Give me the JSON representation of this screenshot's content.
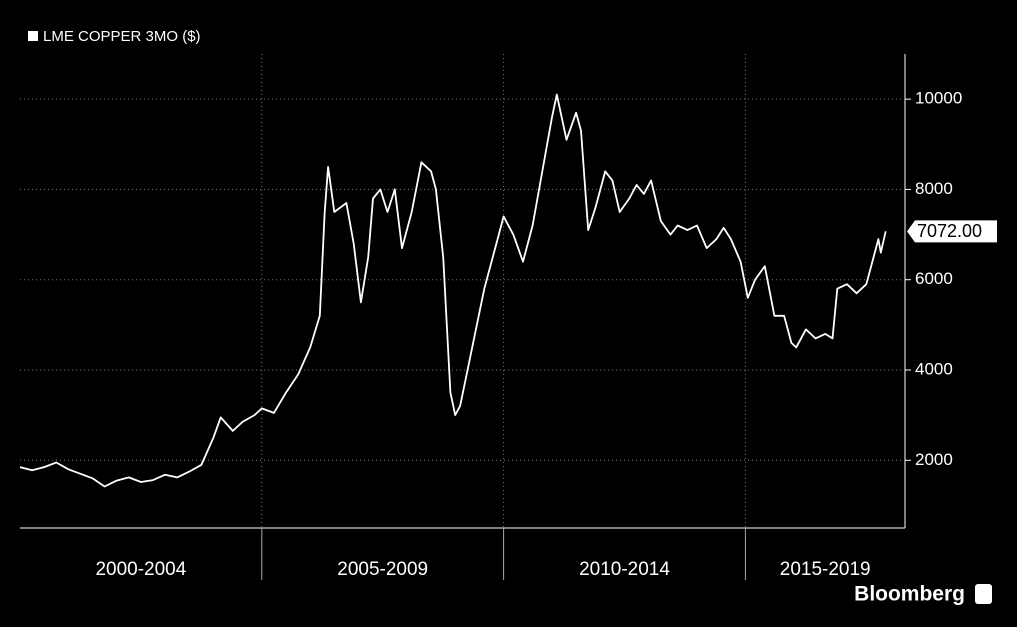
{
  "chart_data": {
    "type": "line",
    "series": [
      {
        "name": "LME COPPER 3MO ($)",
        "color": "#ffffff",
        "x": [
          2000.0,
          2000.25,
          2000.5,
          2000.75,
          2001.0,
          2001.25,
          2001.5,
          2001.75,
          2002.0,
          2002.25,
          2002.5,
          2002.75,
          2003.0,
          2003.25,
          2003.5,
          2003.75,
          2004.0,
          2004.15,
          2004.4,
          2004.6,
          2004.85,
          2005.0,
          2005.25,
          2005.5,
          2005.75,
          2006.0,
          2006.2,
          2006.3,
          2006.37,
          2006.5,
          2006.75,
          2006.9,
          2007.05,
          2007.2,
          2007.3,
          2007.45,
          2007.6,
          2007.75,
          2007.9,
          2008.1,
          2008.3,
          2008.5,
          2008.6,
          2008.75,
          2008.9,
          2009.0,
          2009.1,
          2009.35,
          2009.6,
          2009.85,
          2010.0,
          2010.2,
          2010.4,
          2010.6,
          2010.8,
          2011.0,
          2011.1,
          2011.3,
          2011.5,
          2011.6,
          2011.75,
          2011.9,
          2012.1,
          2012.25,
          2012.4,
          2012.6,
          2012.75,
          2012.9,
          2013.05,
          2013.25,
          2013.45,
          2013.6,
          2013.8,
          2014.0,
          2014.2,
          2014.4,
          2014.55,
          2014.7,
          2014.9,
          2015.05,
          2015.2,
          2015.4,
          2015.6,
          2015.8,
          2015.95,
          2016.05,
          2016.25,
          2016.45,
          2016.65,
          2016.8,
          2016.9,
          2017.1,
          2017.3,
          2017.5,
          2017.65,
          2017.75,
          2017.8,
          2017.9
        ],
        "values": [
          1850,
          1780,
          1850,
          1950,
          1800,
          1700,
          1600,
          1420,
          1550,
          1620,
          1520,
          1560,
          1680,
          1620,
          1750,
          1900,
          2500,
          2950,
          2650,
          2850,
          3000,
          3150,
          3050,
          3500,
          3900,
          4500,
          5200,
          7500,
          8500,
          7500,
          7700,
          6800,
          5500,
          6500,
          7800,
          8000,
          7500,
          8000,
          6700,
          7500,
          8600,
          8400,
          8000,
          6500,
          3500,
          3000,
          3200,
          4500,
          5800,
          6800,
          7400,
          7000,
          6400,
          7200,
          8400,
          9600,
          10100,
          9100,
          9700,
          9300,
          7100,
          7600,
          8400,
          8200,
          7500,
          7800,
          8100,
          7900,
          8200,
          7300,
          7000,
          7200,
          7100,
          7200,
          6700,
          6900,
          7150,
          6900,
          6400,
          5600,
          6000,
          6300,
          5200,
          5200,
          4600,
          4500,
          4900,
          4700,
          4800,
          4700,
          5800,
          5900,
          5700,
          5900,
          6500,
          6900,
          6600,
          7072
        ]
      }
    ],
    "last_value_label": {
      "value": 7072,
      "label": "7072.00"
    },
    "xlim": [
      2000,
      2018.3
    ],
    "xticks": [
      {
        "value": 2002.5,
        "label": "2000-2004"
      },
      {
        "value": 2007.5,
        "label": "2005-2009"
      },
      {
        "value": 2012.5,
        "label": "2010-2014"
      },
      {
        "value": 2016.65,
        "label": "2015-2019"
      }
    ],
    "xgrid": [
      2005,
      2010,
      2015
    ],
    "ylim": [
      500,
      11000
    ],
    "yticks": [
      2000,
      4000,
      6000,
      8000,
      10000
    ],
    "grid": true,
    "source": "Bloomberg"
  }
}
